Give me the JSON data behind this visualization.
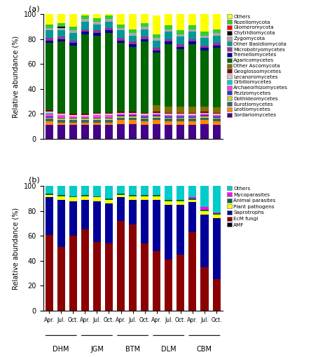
{
  "panel_a": {
    "legend_labels_top_to_bottom": [
      "Others",
      "Rozellomycota",
      "Glomeromycota",
      "Chytridiomycota",
      "Zygomycota",
      "Other Basidiomycota",
      "Microbotryomycetes",
      "Tremellomycetes",
      "Agaricomycetes",
      "Other Ascomycota",
      "Geoglossomycetes",
      "Lecanoromycetes",
      "Orbiliomycetes",
      "Archaeorhizomycetes",
      "Pezizomycetes",
      "Dothideomycetes",
      "Eurotiomycetes",
      "Leotiomycetes",
      "Sordariomycetes"
    ],
    "colors": {
      "Others": "#FFFF00",
      "Rozellomycota": "#33CC33",
      "Glomeromycota": "#FF0000",
      "Chytridiomycota": "#000000",
      "Zygomycota": "#AAAAAA",
      "Other Basidiomycota": "#009999",
      "Microbotryomycetes": "#993399",
      "Tremellomycetes": "#000099",
      "Agaricomycetes": "#006600",
      "Other Ascomycota": "#807000",
      "Geoglossomycetes": "#800000",
      "Lecanoromycetes": "#CCCCCC",
      "Orbiliomycetes": "#00CCCC",
      "Archaeorhizomycetes": "#FF44CC",
      "Pezizomycetes": "#3333CC",
      "Dothideomycetes": "#CCCC33",
      "Eurotiomycetes": "#336666",
      "Leotiomycetes": "#FF8800",
      "Sordariomycetes": "#440088"
    },
    "stack_order_bottom_to_top": [
      "Sordariomycetes",
      "Leotiomycetes",
      "Eurotiomycetes",
      "Dothideomycetes",
      "Pezizomycetes",
      "Archaeorhizomycetes",
      "Orbiliomycetes",
      "Lecanoromycetes",
      "Geoglossomycetes",
      "Other Ascomycota",
      "Agaricomycetes",
      "Tremellomycetes",
      "Microbotryomycetes",
      "Other Basidiomycota",
      "Zygomycota",
      "Chytridiomycota",
      "Glomeromycota",
      "Rozellomycota",
      "Others"
    ],
    "data": {
      "Sordariomycetes": [
        11,
        11,
        11,
        11,
        11,
        11,
        12,
        12,
        11,
        12,
        11,
        11,
        11,
        12,
        11
      ],
      "Leotiomycetes": [
        3,
        2,
        2,
        2,
        2,
        2,
        3,
        3,
        3,
        3,
        3,
        3,
        3,
        3,
        3
      ],
      "Eurotiomycetes": [
        2,
        2,
        2,
        2,
        2,
        2,
        2,
        2,
        2,
        2,
        2,
        2,
        2,
        2,
        2
      ],
      "Dothideomycetes": [
        1,
        1,
        1,
        1,
        1,
        1,
        1,
        1,
        1,
        1,
        1,
        1,
        1,
        1,
        1
      ],
      "Pezizomycetes": [
        1,
        1,
        1,
        1,
        1,
        1,
        1,
        1,
        1,
        1,
        1,
        1,
        1,
        1,
        1
      ],
      "Archaeorhizomycetes": [
        2,
        2,
        1,
        1,
        2,
        2,
        1,
        1,
        1,
        1,
        1,
        1,
        1,
        1,
        1
      ],
      "Orbiliomycetes": [
        1,
        0,
        0,
        0,
        0,
        0,
        0,
        0,
        0,
        0,
        0,
        0,
        0,
        0,
        0
      ],
      "Lecanoromycetes": [
        1,
        1,
        1,
        1,
        1,
        1,
        1,
        1,
        1,
        1,
        1,
        1,
        1,
        1,
        1
      ],
      "Geoglossomycetes": [
        1,
        1,
        1,
        1,
        1,
        1,
        1,
        1,
        1,
        1,
        1,
        1,
        1,
        1,
        1
      ],
      "Other Ascomycota": [
        0,
        0,
        0,
        0,
        0,
        0,
        0,
        0,
        0,
        5,
        5,
        5,
        5,
        4,
        4
      ],
      "Agaricomycetes": [
        54,
        57,
        55,
        64,
        62,
        64,
        55,
        52,
        57,
        42,
        50,
        46,
        50,
        45,
        48
      ],
      "Tremellomycetes": [
        2,
        2,
        2,
        2,
        2,
        2,
        2,
        2,
        2,
        2,
        2,
        2,
        2,
        2,
        2
      ],
      "Microbotryomycetes": [
        2,
        2,
        2,
        2,
        2,
        2,
        2,
        2,
        2,
        2,
        2,
        2,
        2,
        2,
        2
      ],
      "Other Basidiomycota": [
        6,
        5,
        6,
        6,
        5,
        5,
        6,
        5,
        6,
        6,
        6,
        6,
        6,
        6,
        6
      ],
      "Zygomycota": [
        2,
        2,
        2,
        2,
        2,
        2,
        2,
        2,
        2,
        2,
        2,
        2,
        2,
        2,
        2
      ],
      "Chytridiomycota": [
        0,
        1,
        0,
        0,
        0,
        0,
        0,
        0,
        0,
        0,
        0,
        0,
        0,
        0,
        0
      ],
      "Glomeromycota": [
        0,
        0,
        0,
        0,
        0,
        0,
        0,
        0,
        0,
        0,
        0,
        0,
        0,
        0,
        0
      ],
      "Rozellomycota": [
        3,
        3,
        3,
        3,
        3,
        3,
        3,
        3,
        3,
        3,
        3,
        3,
        3,
        3,
        3
      ],
      "Others": [
        8,
        7,
        11,
        11,
        11,
        10,
        8,
        13,
        10,
        15,
        13,
        15,
        13,
        15,
        14
      ]
    }
  },
  "panel_b": {
    "legend_labels_top_to_bottom": [
      "Others",
      "Mycoparasites",
      "Animal parasites",
      "Plant pathogens",
      "Saprotrophs",
      "EcM fungi",
      "AMF"
    ],
    "colors": {
      "Others": "#00CCCC",
      "Mycoparasites": "#FF00FF",
      "Animal parasites": "#006633",
      "Plant pathogens": "#FFFF00",
      "Saprotrophs": "#000099",
      "EcM fungi": "#8B0000",
      "AMF": "#000000"
    },
    "stack_order_bottom_to_top": [
      "AMF",
      "EcM fungi",
      "Saprotrophs",
      "Plant pathogens",
      "Animal parasites",
      "Mycoparasites",
      "Others"
    ],
    "data": {
      "AMF": [
        0,
        0,
        0,
        0,
        0,
        0,
        0,
        0,
        0,
        0,
        0,
        0,
        0,
        0,
        0
      ],
      "EcM fungi": [
        61,
        51,
        60,
        65,
        55,
        54,
        72,
        69,
        54,
        48,
        41,
        45,
        63,
        35,
        25
      ],
      "Saprotrophs": [
        30,
        38,
        28,
        24,
        33,
        32,
        19,
        20,
        35,
        41,
        44,
        40,
        24,
        42,
        49
      ],
      "Plant pathogens": [
        2,
        3,
        3,
        3,
        3,
        3,
        2,
        3,
        3,
        3,
        3,
        3,
        2,
        3,
        3
      ],
      "Animal parasites": [
        1,
        1,
        1,
        1,
        1,
        1,
        1,
        1,
        1,
        1,
        1,
        1,
        1,
        1,
        1
      ],
      "Mycoparasites": [
        0,
        0,
        0,
        0,
        0,
        0,
        0,
        0,
        0,
        0,
        0,
        0,
        1,
        2,
        1
      ],
      "Others": [
        6,
        7,
        8,
        7,
        8,
        10,
        6,
        7,
        7,
        7,
        11,
        11,
        9,
        17,
        21
      ]
    }
  },
  "xlabel_sites": [
    "DHM",
    "JGM",
    "BTM",
    "DLM",
    "CBM"
  ],
  "xlabel_months": [
    "Apr.",
    "Jul.",
    "Oct.",
    "Apr.",
    "Jul.",
    "Oct.",
    "Apr.",
    "Jul.",
    "Oct.",
    "Apr.",
    "Jul.",
    "Oct.",
    "Apr.",
    "Jul.",
    "Oct."
  ]
}
